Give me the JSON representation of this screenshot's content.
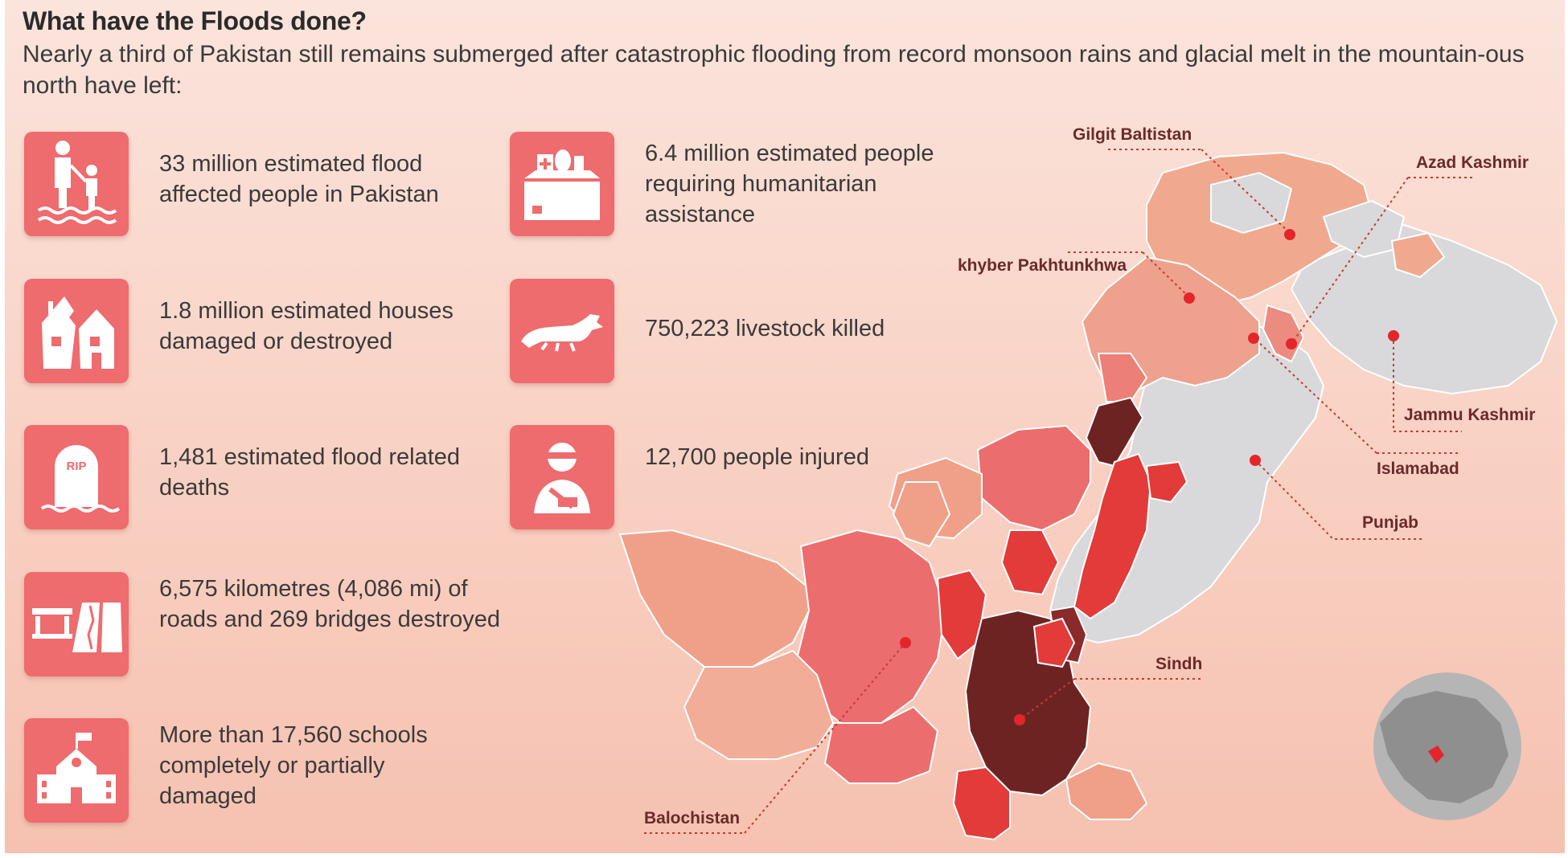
{
  "title": "What have the Floods done?",
  "subtitle": "Nearly a third of Pakistan still remains submerged after catastrophic flooding from record monsoon rains and glacial melt in the mountain-ous north have left:",
  "stats": {
    "affected": {
      "text": "33 million estimated flood affected people in Pakistan",
      "icon": "wading-family-icon"
    },
    "houses": {
      "text": "1.8 million estimated houses damaged or destroyed",
      "icon": "collapsed-house-icon"
    },
    "deaths": {
      "text": "1,481 estimated flood related deaths",
      "icon": "gravestone-icon",
      "icon_text": "RIP"
    },
    "roads": {
      "text": "6,575 kilometres (4,086 mi) of roads and 269 bridges destroyed",
      "icon": "bridge-road-icon"
    },
    "schools": {
      "text": "More than 17,560 schools completely or partially damaged",
      "icon": "school-icon"
    },
    "assistance": {
      "text": "6.4 million estimated people requiring humanitarian assistance",
      "icon": "aid-box-icon"
    },
    "livestock": {
      "text": "750,223 livestock killed",
      "icon": "dead-livestock-icon"
    },
    "injured": {
      "text": "12,700 people injured",
      "icon": "injured-person-icon"
    }
  },
  "map": {
    "regions": {
      "gilgit": "Gilgit Baltistan",
      "azad": "Azad Kashmir",
      "khyber": "khyber Pakhtunkhwa",
      "jammu": "Jammu Kashmir",
      "islamabad": "Islamabad",
      "punjab": "Punjab",
      "sindh": "Sindh",
      "balochistan": "Balochistan"
    },
    "colors": {
      "tile": "#ee6b6e",
      "pin": "#e3262c",
      "unaffected": "#d9d9db",
      "light": "#f0a089",
      "medium": "#ec6d6d",
      "severe": "#e33a3a",
      "extreme": "#6e2323"
    }
  }
}
